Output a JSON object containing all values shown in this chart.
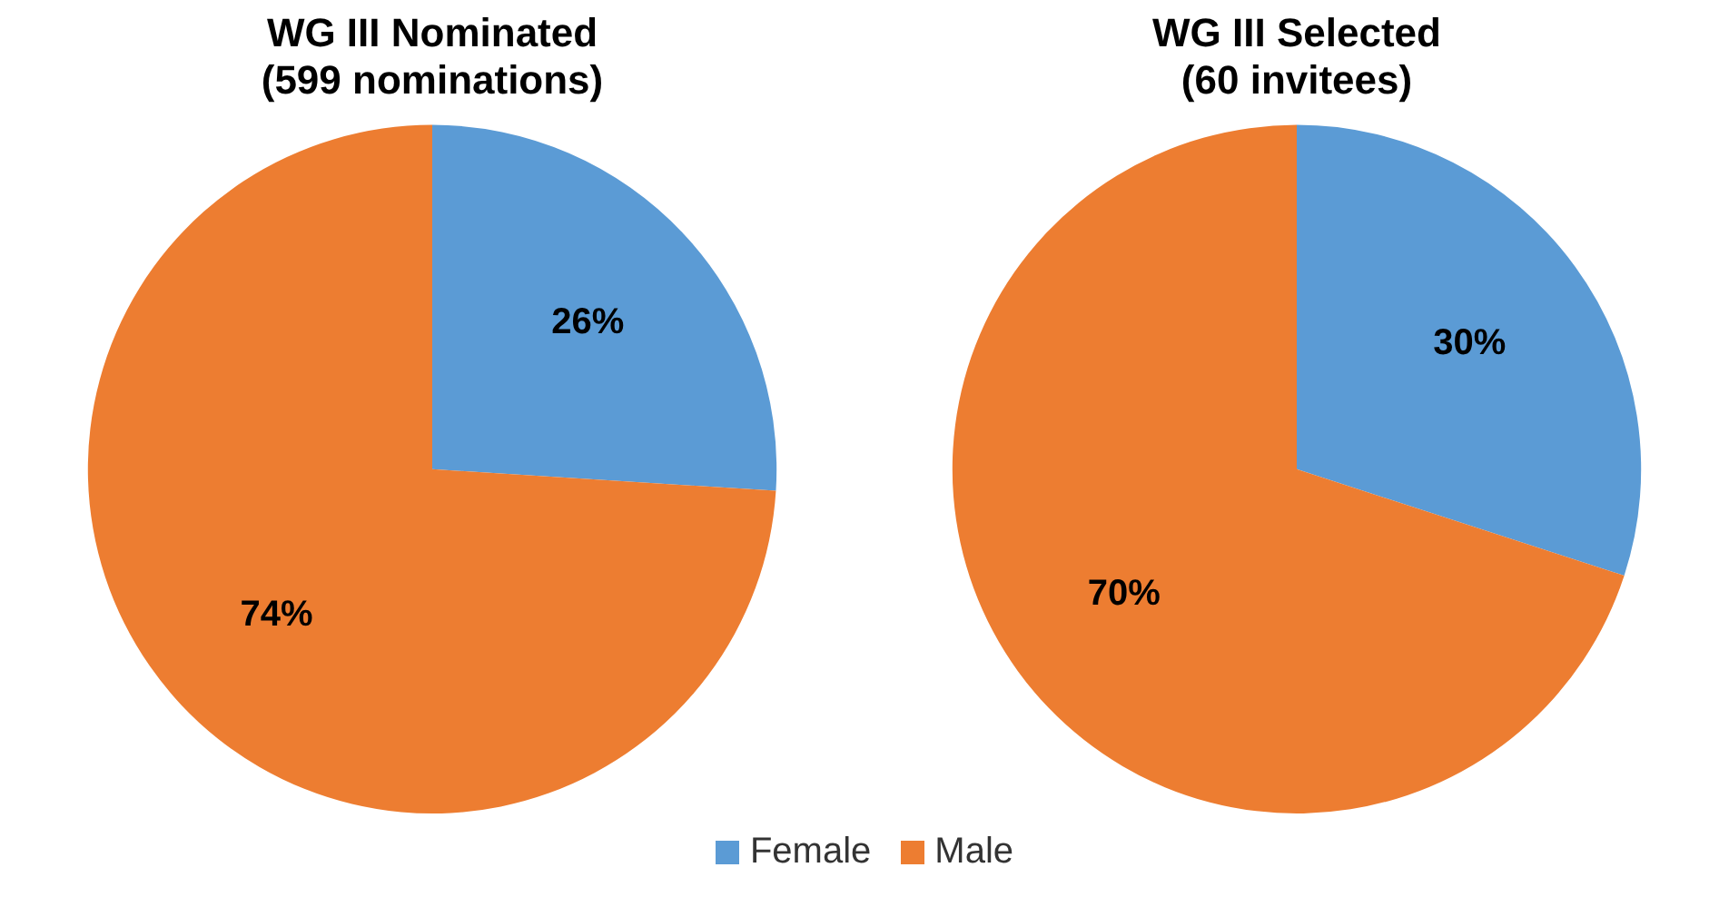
{
  "chart_data": [
    {
      "type": "pie",
      "title": "WG III Nominated\n(599 nominations)",
      "categories": [
        "Female",
        "Male"
      ],
      "values": [
        26,
        74
      ],
      "colors": [
        "#5b9bd5",
        "#ed7d31"
      ],
      "value_labels": [
        "26%",
        "74%"
      ],
      "legend": "bottom"
    },
    {
      "type": "pie",
      "title": "WG III Selected\n(60 invitees)",
      "categories": [
        null,
        null
      ],
      "values": [
        30,
        70
      ],
      "colors": [
        "#5b9bd5",
        "#ed7d31"
      ],
      "value_labels": [
        "30%",
        "70%"
      ]
    }
  ]
}
